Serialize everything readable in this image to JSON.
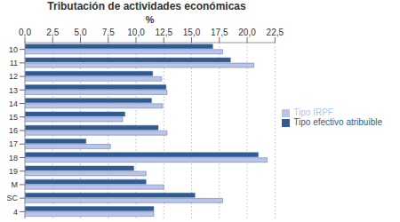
{
  "chart_data": {
    "type": "bar",
    "title": "Tributación de actividades económicas",
    "xlabel": "%",
    "orientation": "horizontal",
    "categories": [
      "10",
      "11",
      "12",
      "13",
      "14",
      "15",
      "16",
      "17",
      "18",
      "19",
      "M",
      "SC",
      "4"
    ],
    "series": [
      {
        "name": "Tipo efectivo atribuible",
        "color": "#2f5b94",
        "values": [
          16.9,
          18.5,
          11.5,
          12.7,
          11.4,
          9.0,
          12.0,
          5.5,
          21.0,
          9.8,
          10.9,
          15.3,
          11.6
        ]
      },
      {
        "name": "Tipo IRPF",
        "color": "#b8c4ec",
        "values": [
          17.8,
          20.6,
          12.3,
          12.8,
          12.4,
          8.8,
          12.8,
          7.7,
          21.8,
          10.9,
          12.5,
          17.8,
          11.6
        ]
      }
    ],
    "xlim": [
      0,
      22.5
    ],
    "xticks": [
      {
        "value": 0,
        "label": "0,0"
      },
      {
        "value": 2.5,
        "label": "2,5"
      },
      {
        "value": 5,
        "label": "5,0"
      },
      {
        "value": 7.5,
        "label": "7,5"
      },
      {
        "value": 10,
        "label": "10,0"
      },
      {
        "value": 12.5,
        "label": "12,5"
      },
      {
        "value": 15,
        "label": "15,0"
      },
      {
        "value": 17.5,
        "label": "17,5"
      },
      {
        "value": 20,
        "label": "20,0"
      },
      {
        "value": 22.5,
        "label": "22,5"
      }
    ],
    "grid": true,
    "legend": "right"
  }
}
